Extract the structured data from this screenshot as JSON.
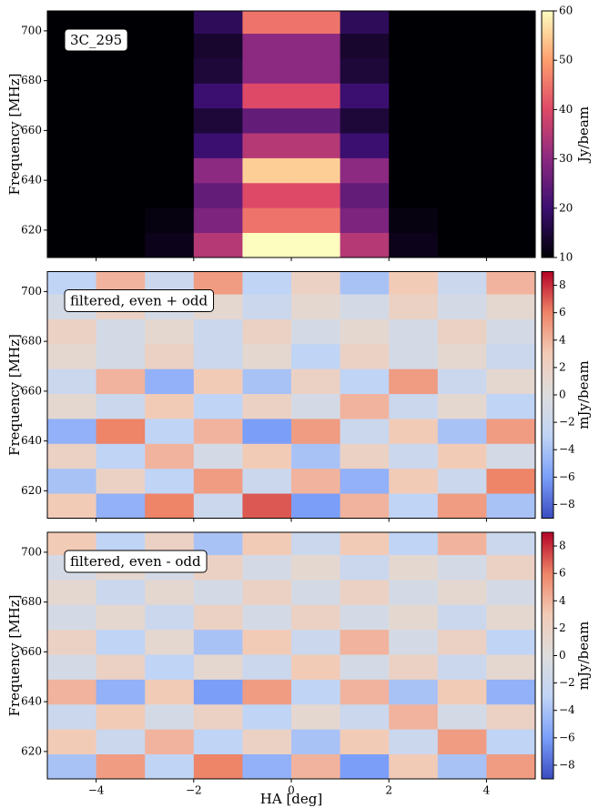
{
  "chart_data": [
    {
      "type": "heatmap",
      "annotation": "3C_295",
      "ylabel": "Frequency [MHz]",
      "colorbar_label": "Jy/beam",
      "xlim": [
        -5,
        5
      ],
      "xticks": [
        -4,
        -2,
        0,
        2,
        4
      ],
      "ylim": [
        609,
        708
      ],
      "yticks": [
        620,
        640,
        660,
        680,
        700
      ],
      "xbins": [
        -5,
        -4,
        -3,
        -2,
        -1,
        0,
        1,
        2,
        3,
        4,
        5
      ],
      "ybins": [
        609,
        619,
        629,
        639,
        649,
        659,
        669,
        679,
        689,
        699,
        708
      ],
      "z": [
        [
          10,
          10,
          12,
          35,
          60,
          60,
          35,
          12,
          10,
          10
        ],
        [
          10,
          10,
          11,
          28,
          45,
          45,
          28,
          11,
          10,
          10
        ],
        [
          10,
          10,
          10,
          25,
          40,
          40,
          25,
          10,
          10,
          10
        ],
        [
          10,
          10,
          10,
          30,
          55,
          55,
          30,
          10,
          10,
          10
        ],
        [
          10,
          10,
          10,
          20,
          35,
          35,
          20,
          10,
          10,
          10
        ],
        [
          10,
          10,
          10,
          15,
          25,
          25,
          15,
          10,
          10,
          10
        ],
        [
          10,
          10,
          10,
          20,
          40,
          40,
          20,
          10,
          10,
          10
        ],
        [
          10,
          10,
          10,
          15,
          30,
          30,
          15,
          10,
          10,
          10
        ],
        [
          10,
          10,
          10,
          14,
          30,
          30,
          14,
          10,
          10,
          10
        ],
        [
          10,
          10,
          10,
          18,
          45,
          45,
          18,
          10,
          10,
          10
        ]
      ],
      "clim": [
        10,
        60
      ],
      "cticks": [
        10,
        20,
        30,
        40,
        50,
        60
      ],
      "colors": [
        "#000004",
        "#3b0f70",
        "#8c2981",
        "#de4968",
        "#fe9f6d",
        "#fcfdbf"
      ]
    },
    {
      "type": "heatmap",
      "annotation": "filtered, even + odd",
      "ylabel": "Frequency [MHz]",
      "colorbar_label": "mJy/beam",
      "xlim": [
        -5,
        5
      ],
      "xticks": [
        -4,
        -2,
        0,
        2,
        4
      ],
      "ylim": [
        609,
        708
      ],
      "yticks": [
        620,
        640,
        660,
        680,
        700
      ],
      "xbins": [
        -5,
        -4,
        -3,
        -2,
        -1,
        0,
        1,
        2,
        3,
        4,
        5
      ],
      "ybins": [
        609,
        619,
        629,
        639,
        649,
        659,
        669,
        679,
        689,
        699,
        708
      ],
      "z": [
        [
          3,
          -5,
          6,
          -2,
          7,
          -6,
          4,
          -3,
          5,
          -4
        ],
        [
          -4,
          2,
          -3,
          5,
          -2,
          4,
          -5,
          3,
          -2,
          6
        ],
        [
          2,
          -3,
          4,
          -1,
          3,
          -4,
          2,
          -2,
          3,
          -1
        ],
        [
          -5,
          6,
          -3,
          4,
          -6,
          5,
          -2,
          3,
          -4,
          5
        ],
        [
          1,
          -2,
          3,
          -3,
          2,
          -1,
          4,
          -2,
          1,
          -3
        ],
        [
          -2,
          4,
          -5,
          3,
          -4,
          2,
          -3,
          5,
          -2,
          1
        ],
        [
          1,
          -1,
          2,
          -2,
          1,
          -3,
          2,
          -1,
          1,
          -2
        ],
        [
          2,
          -1,
          1,
          -2,
          2,
          -1,
          1,
          -1,
          2,
          -1
        ],
        [
          -1,
          2,
          -1,
          1,
          -2,
          1,
          -1,
          2,
          -1,
          1
        ],
        [
          -3,
          4,
          -2,
          5,
          -3,
          2,
          -4,
          3,
          -2,
          4
        ]
      ],
      "clim": [
        -9,
        9
      ],
      "cticks": [
        {
          "value": -8,
          "label": "−8"
        },
        {
          "value": -6,
          "label": "−6"
        },
        {
          "value": -4,
          "label": "−4"
        },
        {
          "value": -2,
          "label": "−2"
        },
        0,
        2,
        4,
        6,
        8
      ],
      "colors": [
        "#3b4cc0",
        "#7b9ff9",
        "#c0d4f5",
        "#dddddd",
        "#f2cbb7",
        "#ee8468",
        "#b40426"
      ]
    },
    {
      "type": "heatmap",
      "annotation": "filtered, even - odd",
      "ylabel": "Frequency [MHz]",
      "colorbar_label": "mJy/beam",
      "xlabel": "HA [deg]",
      "xlim": [
        -5,
        5
      ],
      "xticks": [
        {
          "value": -4,
          "label": "−4"
        },
        {
          "value": -2,
          "label": "−2"
        },
        0,
        2,
        4
      ],
      "ylim": [
        609,
        708
      ],
      "yticks": [
        620,
        640,
        660,
        680,
        700
      ],
      "xbins": [
        -5,
        -4,
        -3,
        -2,
        -1,
        0,
        1,
        2,
        3,
        4,
        5
      ],
      "ybins": [
        609,
        619,
        629,
        639,
        649,
        659,
        669,
        679,
        689,
        699,
        708
      ],
      "z": [
        [
          -4,
          5,
          -3,
          6,
          -5,
          4,
          -6,
          3,
          -4,
          5
        ],
        [
          3,
          -2,
          4,
          -3,
          2,
          -4,
          3,
          -2,
          5,
          -3
        ],
        [
          -2,
          3,
          -1,
          2,
          -3,
          1,
          -2,
          4,
          -1,
          2
        ],
        [
          4,
          -5,
          3,
          -6,
          5,
          -3,
          4,
          -4,
          3,
          -5
        ],
        [
          -1,
          2,
          -3,
          1,
          -2,
          3,
          -1,
          2,
          -2,
          1
        ],
        [
          2,
          -3,
          1,
          -4,
          3,
          -2,
          4,
          -1,
          2,
          -3
        ],
        [
          -1,
          1,
          -2,
          2,
          -1,
          2,
          -1,
          1,
          -2,
          1
        ],
        [
          1,
          -2,
          1,
          -1,
          2,
          -1,
          2,
          -1,
          1,
          -1
        ],
        [
          -1,
          1,
          -1,
          2,
          -1,
          1,
          -2,
          1,
          -1,
          2
        ],
        [
          3,
          -3,
          2,
          -4,
          3,
          -2,
          3,
          -3,
          4,
          -2
        ]
      ],
      "clim": [
        -9,
        9
      ],
      "cticks": [
        {
          "value": -8,
          "label": "−8"
        },
        {
          "value": -6,
          "label": "−6"
        },
        {
          "value": -4,
          "label": "−4"
        },
        {
          "value": -2,
          "label": "−2"
        },
        0,
        2,
        4,
        6,
        8
      ],
      "colors": [
        "#3b4cc0",
        "#7b9ff9",
        "#c0d4f5",
        "#dddddd",
        "#f2cbb7",
        "#ee8468",
        "#b40426"
      ]
    }
  ]
}
